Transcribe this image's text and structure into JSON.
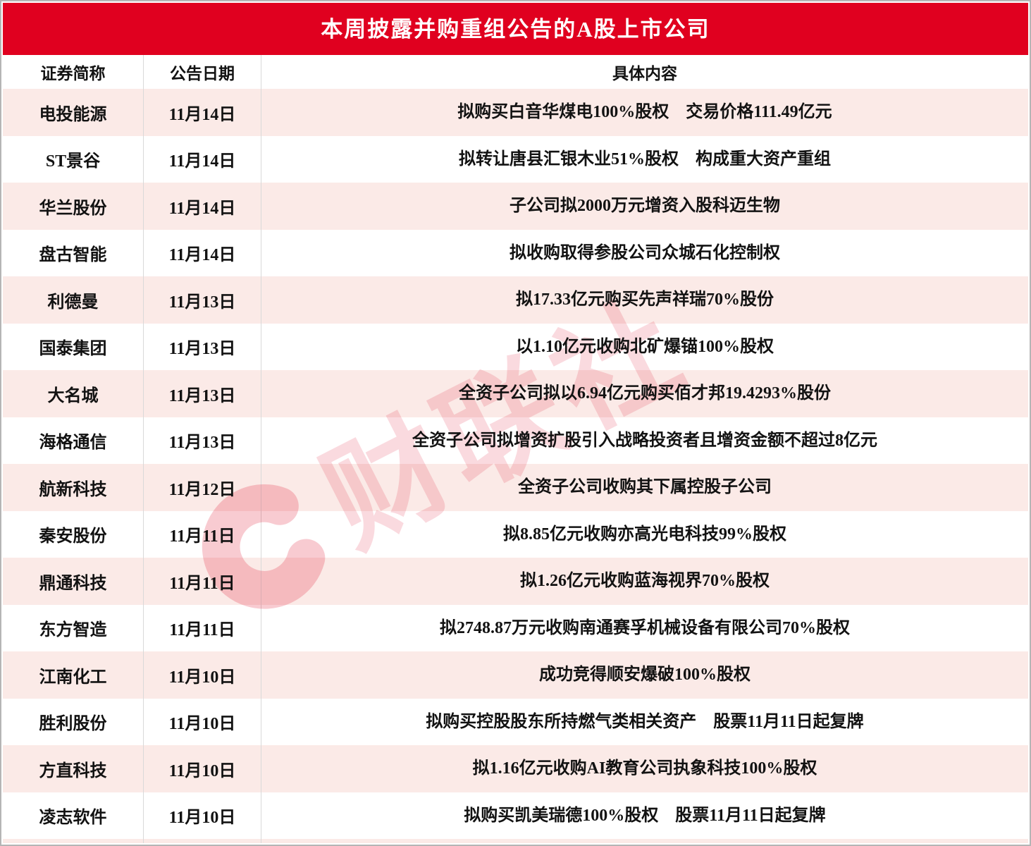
{
  "chart_data": {
    "type": "table",
    "title": "本周披露并购重组公告的A股上市公司",
    "columns": [
      "证券简称",
      "公告日期",
      "具体内容"
    ],
    "rows": [
      {
        "name": "电投能源",
        "date": "11月14日",
        "content": "拟购买白音华煤电100%股权　交易价格111.49亿元"
      },
      {
        "name": "ST景谷",
        "date": "11月14日",
        "content": "拟转让唐县汇银木业51%股权　构成重大资产重组"
      },
      {
        "name": "华兰股份",
        "date": "11月14日",
        "content": "子公司拟2000万元增资入股科迈生物"
      },
      {
        "name": "盘古智能",
        "date": "11月14日",
        "content": "拟收购取得参股公司众城石化控制权"
      },
      {
        "name": "利德曼",
        "date": "11月13日",
        "content": "拟17.33亿元购买先声祥瑞70%股份"
      },
      {
        "name": "国泰集团",
        "date": "11月13日",
        "content": "以1.10亿元收购北矿爆锚100%股权"
      },
      {
        "name": "大名城",
        "date": "11月13日",
        "content": "全资子公司拟以6.94亿元购买佰才邦19.4293%股份"
      },
      {
        "name": "海格通信",
        "date": "11月13日",
        "content": "全资子公司拟增资扩股引入战略投资者且增资金额不超过8亿元"
      },
      {
        "name": "航新科技",
        "date": "11月12日",
        "content": "全资子公司收购其下属控股子公司"
      },
      {
        "name": "秦安股份",
        "date": "11月11日",
        "content": "拟8.85亿元收购亦高光电科技99%股权"
      },
      {
        "name": "鼎通科技",
        "date": "11月11日",
        "content": "拟1.26亿元收购蓝海视界70%股权"
      },
      {
        "name": "东方智造",
        "date": "11月11日",
        "content": "拟2748.87万元收购南通赛孚机械设备有限公司70%股权"
      },
      {
        "name": "江南化工",
        "date": "11月10日",
        "content": "成功竞得顺安爆破100%股权"
      },
      {
        "name": "胜利股份",
        "date": "11月10日",
        "content": "拟购买控股股东所持燃气类相关资产　股票11月11日起复牌"
      },
      {
        "name": "方直科技",
        "date": "11月10日",
        "content": "拟1.16亿元收购AI教育公司执象科技100%股权"
      },
      {
        "name": "凌志软件",
        "date": "11月10日",
        "content": "拟购买凯美瑞德100%股权　股票11月11日起复牌"
      }
    ],
    "layout_hints": {
      "striped_rows": true,
      "stripe_starts_on_first_row": true,
      "grid": "vertical-dividers-only"
    }
  },
  "watermark": {
    "logo_letter": "C",
    "brand_text": "财联社"
  },
  "colors": {
    "header_red": "#E0001F",
    "row_stripe": "#FBEAE7",
    "divider": "#D9D9D9",
    "text": "#121212",
    "watermark_red": "#DE0A28"
  }
}
